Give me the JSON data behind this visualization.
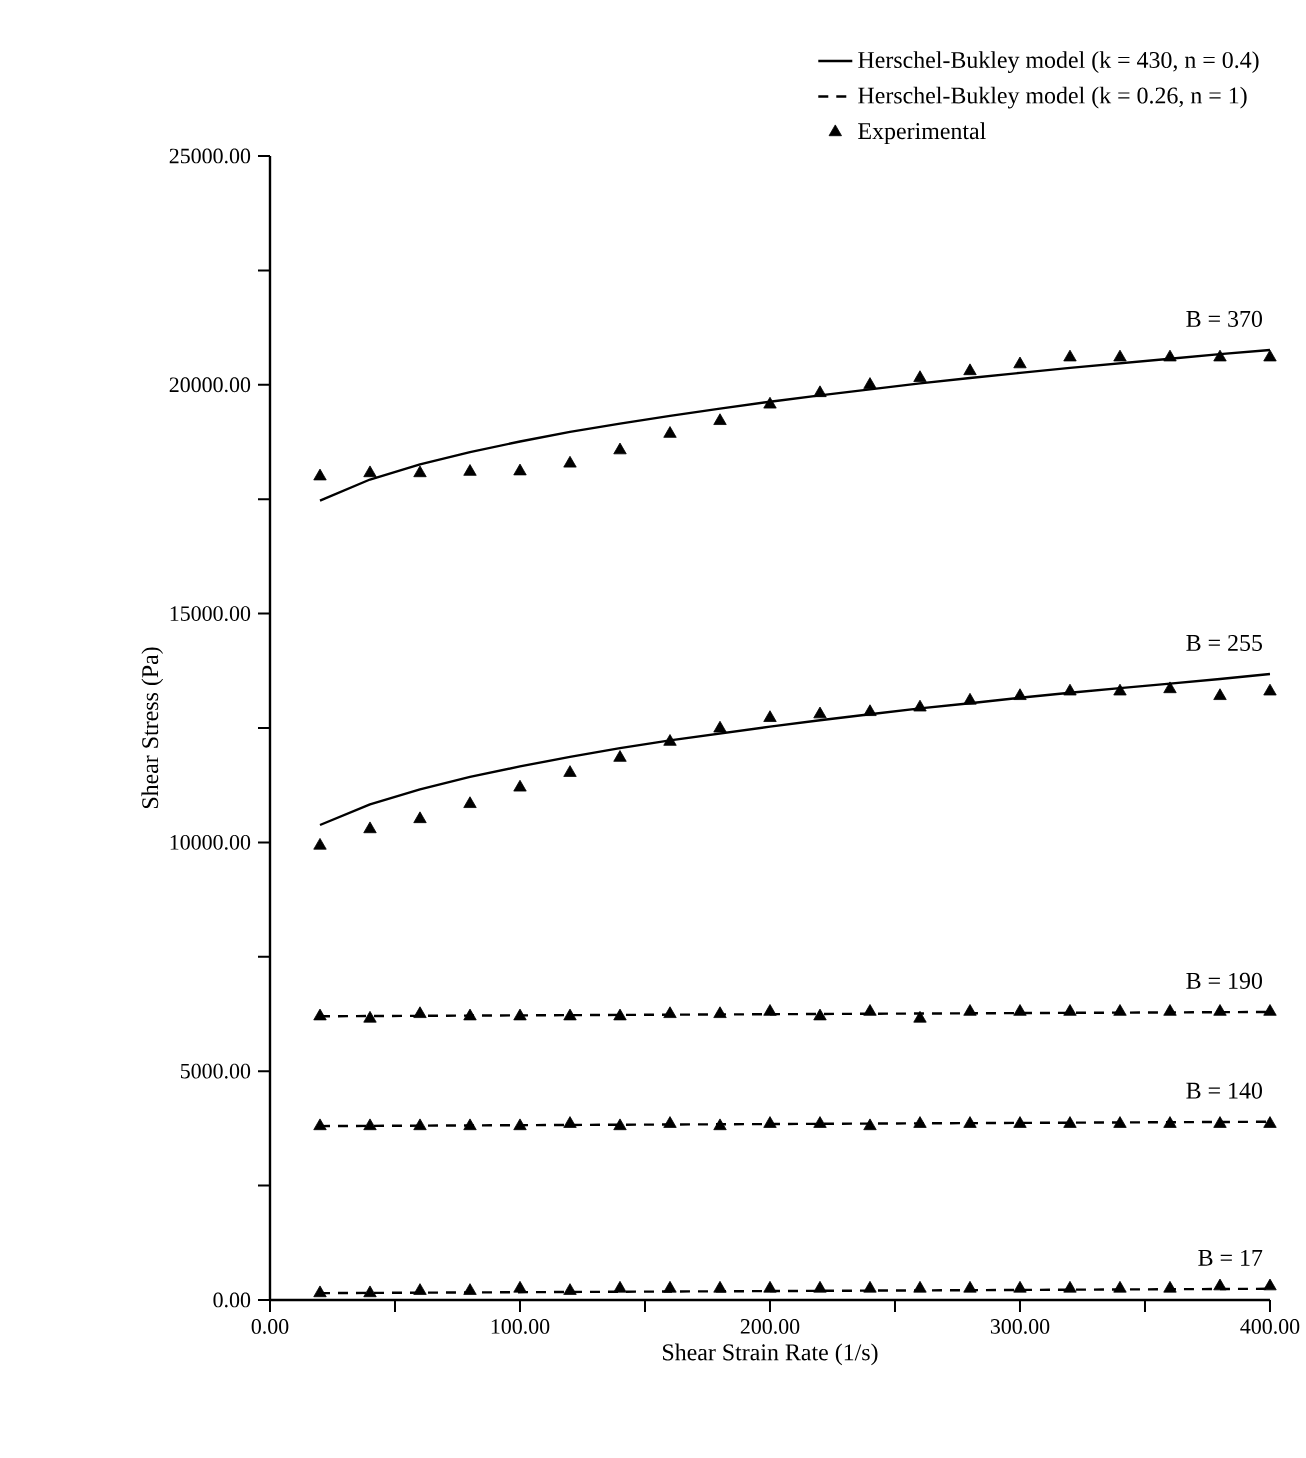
{
  "chart_data": {
    "type": "line",
    "xlabel": "Shear Strain Rate (1/s)",
    "ylabel": "Shear Stress (Pa)",
    "xlim": [
      0,
      400
    ],
    "ylim": [
      0,
      25000
    ],
    "xticks": [
      {
        "value": 0,
        "label": "0.00"
      },
      {
        "value": 50,
        "label": null
      },
      {
        "value": 100,
        "label": "100.00"
      },
      {
        "value": 150,
        "label": null
      },
      {
        "value": 200,
        "label": "200.00"
      },
      {
        "value": 250,
        "label": null
      },
      {
        "value": 300,
        "label": "300.00"
      },
      {
        "value": 350,
        "label": null
      },
      {
        "value": 400,
        "label": "400.00"
      }
    ],
    "yticks": [
      {
        "value": 0,
        "label": "0.00"
      },
      {
        "value": 2500,
        "label": null
      },
      {
        "value": 5000,
        "label": "5000.00"
      },
      {
        "value": 7500,
        "label": null
      },
      {
        "value": 10000,
        "label": "10000.00"
      },
      {
        "value": 12500,
        "label": null
      },
      {
        "value": 15000,
        "label": "15000.00"
      },
      {
        "value": 17500,
        "label": null
      },
      {
        "value": 20000,
        "label": "20000.00"
      },
      {
        "value": 22500,
        "label": null
      },
      {
        "value": 25000,
        "label": "25000.00"
      }
    ],
    "legend": "top right",
    "x": [
      20,
      40,
      60,
      80,
      100,
      120,
      140,
      160,
      180,
      200,
      220,
      240,
      260,
      280,
      300,
      320,
      340,
      360,
      380,
      400
    ],
    "series": [
      {
        "name": "Herschel-Bukley model (k = 430, n = 0.4)",
        "line_style": "solid",
        "marker": "none",
        "color": "#000000",
        "values": [
          17470,
          17930,
          18260,
          18530,
          18760,
          18970,
          19150,
          19320,
          19480,
          19630,
          19770,
          19900,
          20030,
          20150,
          20260,
          20370,
          20470,
          20570,
          20670,
          20760
        ]
      },
      {
        "name": "Herschel-Bukley model (k = 0.26, n = 1)",
        "line_style": "dashed",
        "marker": "none",
        "color": "#000000",
        "values": [
          6200,
          6205,
          6210,
          6215,
          6220,
          6225,
          6230,
          6235,
          6240,
          6245,
          6250,
          6255,
          6260,
          6265,
          6270,
          6275,
          6280,
          6285,
          6290,
          6295
        ]
      },
      {
        "name": "Experimental",
        "type": "scatter",
        "marker": "triangle",
        "color": "#000000",
        "values": [
          18000,
          18070,
          18070,
          18100,
          18110,
          18280,
          18570,
          18930,
          19210,
          19570,
          19820,
          20000,
          20150,
          20300,
          20450,
          20600,
          20600,
          20600,
          20600,
          20600
        ]
      },
      {
        "line_style": "solid",
        "marker": "none",
        "color": "#000000",
        "values": [
          10380,
          10830,
          11160,
          11430,
          11660,
          11870,
          12060,
          12230,
          12380,
          12530,
          12670,
          12800,
          12930,
          13040,
          13160,
          13270,
          13370,
          13470,
          13570,
          13680
        ]
      },
      {
        "line_style": "dashed",
        "marker": "none",
        "color": "#000000",
        "values": [
          3800,
          3805,
          3810,
          3815,
          3820,
          3825,
          3830,
          3835,
          3840,
          3845,
          3850,
          3855,
          3860,
          3865,
          3870,
          3875,
          3880,
          3885,
          3890,
          3895
        ]
      },
      {
        "line_style": "dashed",
        "marker": "none",
        "color": "#000000",
        "values": [
          150,
          155,
          160,
          165,
          170,
          175,
          180,
          185,
          190,
          195,
          200,
          205,
          210,
          215,
          220,
          225,
          230,
          235,
          240,
          245
        ]
      },
      {
        "type": "scatter",
        "marker": "triangle",
        "color": "#000000",
        "values": [
          9930,
          10290,
          10510,
          10840,
          11200,
          11520,
          11850,
          12200,
          12490,
          12720,
          12800,
          12850,
          12950,
          13100,
          13200,
          13300,
          13300,
          13350,
          13200,
          13300
        ]
      },
      {
        "type": "scatter",
        "marker": "triangle",
        "color": "#000000",
        "values": [
          6200,
          6150,
          6250,
          6200,
          6200,
          6200,
          6200,
          6250,
          6250,
          6300,
          6200,
          6300,
          6150,
          6300,
          6300,
          6300,
          6300,
          6300,
          6300,
          6300
        ]
      },
      {
        "type": "scatter",
        "marker": "triangle",
        "color": "#000000",
        "values": [
          3800,
          3800,
          3800,
          3800,
          3800,
          3850,
          3800,
          3850,
          3800,
          3850,
          3850,
          3800,
          3850,
          3850,
          3850,
          3850,
          3850,
          3850,
          3850,
          3850
        ]
      },
      {
        "type": "scatter",
        "marker": "triangle",
        "color": "#000000",
        "values": [
          150,
          150,
          200,
          200,
          250,
          200,
          250,
          250,
          250,
          250,
          250,
          250,
          250,
          250,
          250,
          250,
          250,
          250,
          300,
          300
        ]
      }
    ],
    "annotations": [
      "B = 370",
      "B = 255",
      "B = 190",
      "B = 140",
      "B = 17"
    ]
  }
}
